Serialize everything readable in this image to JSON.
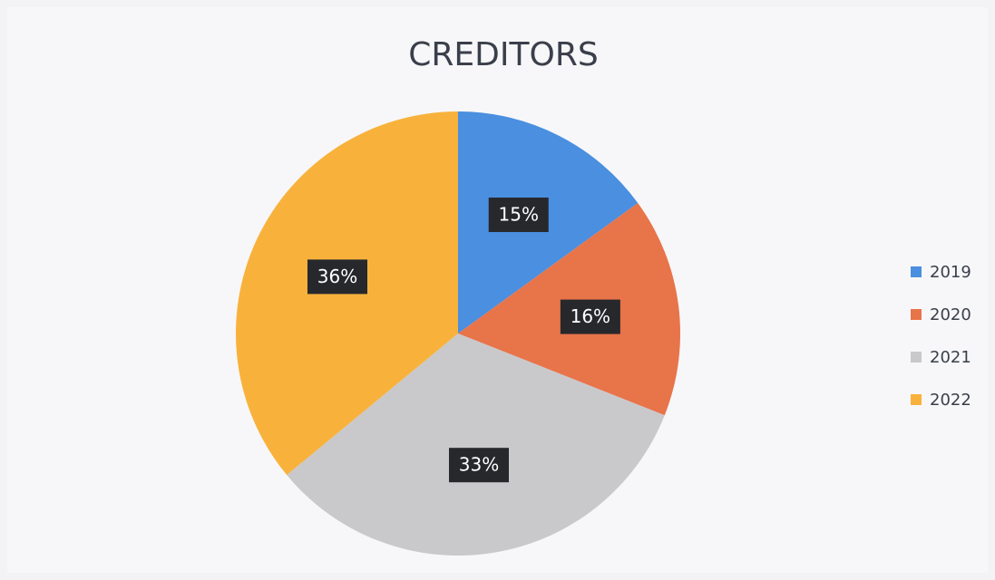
{
  "chart_data": {
    "type": "pie",
    "title": "CREDITORS",
    "categories": [
      "2019",
      "2020",
      "2021",
      "2022"
    ],
    "values": [
      15,
      16,
      33,
      36
    ],
    "value_labels": [
      "15%",
      "16%",
      "33%",
      "36%"
    ],
    "colors": [
      "#4a8fe0",
      "#e8744a",
      "#c9c9cb",
      "#f8b23c"
    ],
    "legend": "right"
  }
}
